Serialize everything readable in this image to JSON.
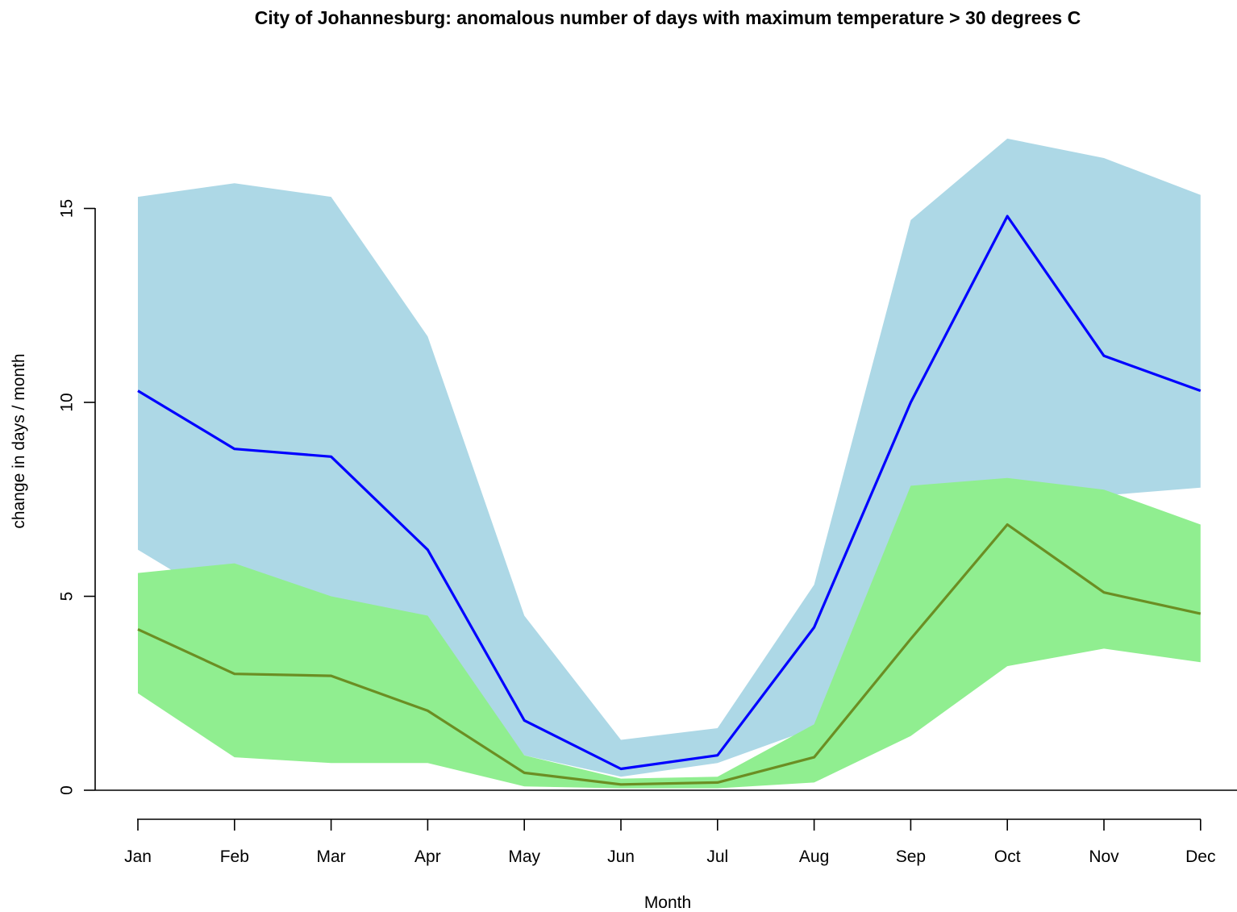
{
  "chart_data": {
    "type": "line",
    "title": "City of Johannesburg: anomalous number of days with maximum temperature > 30 degrees C",
    "xlabel": "Month",
    "ylabel": "change in days / month",
    "categories": [
      "Jan",
      "Feb",
      "Mar",
      "Apr",
      "May",
      "Jun",
      "Jul",
      "Aug",
      "Sep",
      "Oct",
      "Nov",
      "Dec"
    ],
    "yticks": [
      0,
      5,
      10,
      15
    ],
    "ylim": [
      0,
      17
    ],
    "grid": false,
    "legend": "none",
    "series": [
      {
        "role": "upper-band",
        "color": "#add8e6",
        "upper": [
          15.3,
          15.65,
          15.3,
          11.7,
          4.5,
          1.3,
          1.6,
          5.3,
          14.7,
          16.8,
          16.3,
          15.35
        ],
        "lower": [
          6.2,
          4.7,
          4.8,
          4.4,
          0.9,
          0.35,
          0.7,
          1.6,
          6.9,
          7.5,
          7.6,
          7.8
        ]
      },
      {
        "role": "upper-median",
        "color": "#0000ff",
        "values": [
          10.3,
          8.8,
          8.6,
          6.2,
          1.8,
          0.55,
          0.9,
          4.2,
          10.0,
          14.8,
          11.2,
          10.3
        ]
      },
      {
        "role": "lower-band",
        "color": "#90ee90",
        "upper": [
          5.6,
          5.85,
          5.0,
          4.5,
          0.9,
          0.3,
          0.35,
          1.7,
          7.85,
          8.05,
          7.75,
          6.85
        ],
        "lower": [
          2.5,
          0.85,
          0.7,
          0.7,
          0.1,
          0.05,
          0.05,
          0.2,
          1.4,
          3.2,
          3.65,
          3.3
        ]
      },
      {
        "role": "lower-median",
        "color": "#6b8e23",
        "values": [
          4.15,
          3.0,
          2.95,
          2.05,
          0.45,
          0.15,
          0.2,
          0.85,
          3.9,
          6.85,
          5.1,
          4.55
        ]
      }
    ]
  }
}
